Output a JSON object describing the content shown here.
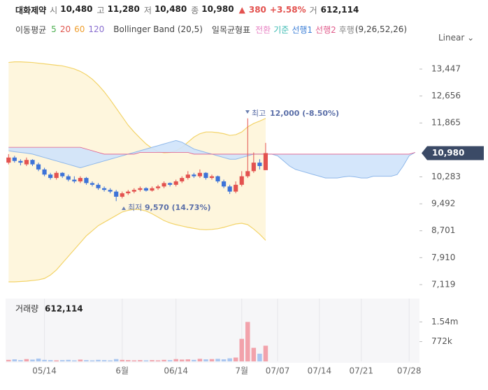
{
  "header": {
    "name": "대화제약",
    "quote": [
      {
        "k": "시",
        "v": "10,480"
      },
      {
        "k": "고",
        "v": "11,280"
      },
      {
        "k": "저",
        "v": "10,480"
      },
      {
        "k": "종",
        "v": "10,980"
      }
    ],
    "change": "380",
    "change_pct": "+3.58%",
    "volume_key": "거",
    "volume": "612,114"
  },
  "indicators": {
    "ma_label": "이동평균",
    "ma": [
      {
        "name": "5",
        "color": "#4caf50"
      },
      {
        "name": "20",
        "color": "#e0574f"
      },
      {
        "name": "60",
        "color": "#f0a030"
      },
      {
        "name": "120",
        "color": "#8a6fd0"
      }
    ],
    "bollinger": "Bollinger Band (20,5)",
    "ichimoku_label": "일목균형표",
    "ichimoku": [
      {
        "name": "전환",
        "color": "#e884c4"
      },
      {
        "name": "기준",
        "color": "#36b8b0"
      },
      {
        "name": "선행1",
        "color": "#3c7fd6"
      },
      {
        "name": "선행2",
        "color": "#e05a8a"
      },
      {
        "name": "후행",
        "color": "#888888"
      }
    ],
    "ichimoku_params": "(9,26,52,26)"
  },
  "scale": "Linear",
  "chart_data": {
    "type": "candlestick",
    "categories": [
      null,
      null,
      null,
      null,
      null,
      null,
      "05/14",
      null,
      null,
      null,
      null,
      null,
      null,
      null,
      null,
      null,
      null,
      null,
      null,
      "6월",
      null,
      null,
      null,
      null,
      null,
      null,
      null,
      null,
      "06/14",
      null,
      null,
      null,
      null,
      null,
      null,
      null,
      null,
      null,
      null,
      "7월",
      null,
      null,
      null,
      null,
      null,
      "07/07",
      null,
      null,
      null,
      null,
      null,
      null,
      "07/14",
      null,
      null,
      null,
      null,
      null,
      null,
      "07/21",
      null,
      null,
      null,
      null,
      null,
      null,
      null,
      "07/28",
      null
    ],
    "open": [
      10700,
      10850,
      10750,
      10650,
      10780,
      10650,
      10500,
      10350,
      10250,
      10400,
      10300,
      10200,
      10150,
      10250,
      10100,
      10050,
      9950,
      9900,
      9850,
      9700,
      9800,
      9850,
      9900,
      9950,
      9880,
      9950,
      10000,
      10100,
      10050,
      10150,
      10250,
      10350,
      10300,
      10400,
      10250,
      10300,
      10150,
      10000,
      9850,
      10050,
      10300,
      10450,
      10700,
      10480,
      null,
      null,
      null,
      null,
      null,
      null,
      null,
      null,
      null,
      null,
      null,
      null,
      null,
      null,
      null,
      null,
      null,
      null,
      null,
      null,
      null,
      null,
      null,
      null,
      null
    ],
    "high": [
      10950,
      10900,
      10800,
      10850,
      10800,
      10700,
      10550,
      10400,
      10450,
      10420,
      10350,
      10300,
      10300,
      10280,
      10150,
      10100,
      10000,
      9950,
      9900,
      9850,
      9900,
      9950,
      10000,
      9980,
      10000,
      10050,
      10150,
      10120,
      10200,
      10300,
      10450,
      10400,
      10500,
      10420,
      10350,
      10320,
      10200,
      10050,
      10150,
      10450,
      12000,
      11000,
      10800,
      11280,
      null,
      null,
      null,
      null,
      null,
      null,
      null,
      null,
      null,
      null,
      null,
      null,
      null,
      null,
      null,
      null,
      null,
      null,
      null,
      null,
      null,
      null,
      null,
      null,
      null
    ],
    "low": [
      10650,
      10700,
      10620,
      10600,
      10600,
      10450,
      10300,
      10200,
      10200,
      10250,
      10150,
      10100,
      10100,
      10050,
      10000,
      9900,
      9850,
      9800,
      9570,
      9650,
      9750,
      9800,
      9850,
      9850,
      9850,
      9900,
      9950,
      10000,
      10000,
      10100,
      10200,
      10250,
      10250,
      10200,
      10200,
      10100,
      9950,
      9780,
      9800,
      10000,
      10250,
      10400,
      10500,
      10480,
      null,
      null,
      null,
      null,
      null,
      null,
      null,
      null,
      null,
      null,
      null,
      null,
      null,
      null,
      null,
      null,
      null,
      null,
      null,
      null,
      null,
      null,
      null,
      null,
      null
    ],
    "close": [
      10850,
      10750,
      10700,
      10780,
      10650,
      10500,
      10350,
      10250,
      10400,
      10300,
      10200,
      10150,
      10250,
      10100,
      10050,
      9950,
      9900,
      9850,
      9700,
      9800,
      9850,
      9900,
      9950,
      9880,
      9950,
      10000,
      10100,
      10050,
      10150,
      10250,
      10350,
      10300,
      10400,
      10250,
      10300,
      10150,
      10000,
      9850,
      10050,
      10300,
      10450,
      10700,
      10600,
      10980,
      null,
      null,
      null,
      null,
      null,
      null,
      null,
      null,
      null,
      null,
      null,
      null,
      null,
      null,
      null,
      null,
      null,
      null,
      null,
      null,
      null,
      null,
      null,
      null,
      null
    ],
    "volume": [
      60000,
      80000,
      50000,
      90000,
      70000,
      110000,
      60000,
      50000,
      40000,
      50000,
      60000,
      40000,
      70000,
      50000,
      40000,
      60000,
      50000,
      40000,
      90000,
      60000,
      50000,
      40000,
      50000,
      40000,
      50000,
      40000,
      60000,
      50000,
      90000,
      70000,
      80000,
      60000,
      100000,
      80000,
      90000,
      100000,
      80000,
      120000,
      150000,
      880000,
      1540000,
      530000,
      300000,
      612114,
      null,
      null,
      null,
      null,
      null,
      null,
      null,
      null,
      null,
      null,
      null,
      null,
      null,
      null,
      null,
      null,
      null,
      null,
      null,
      null,
      null,
      null,
      null,
      null,
      null
    ],
    "bollinger_upper": [
      13640,
      13660,
      13660,
      13650,
      13640,
      13620,
      13600,
      13580,
      13560,
      13540,
      13500,
      13450,
      13380,
      13280,
      13150,
      12980,
      12780,
      12550,
      12300,
      12050,
      11800,
      11600,
      11420,
      11250,
      11120,
      11030,
      10990,
      11000,
      11050,
      11150,
      11300,
      11450,
      11550,
      11600,
      11600,
      11580,
      11550,
      11500,
      11520,
      11600,
      11750,
      11850,
      11920,
      12000,
      null,
      null,
      null,
      null,
      null,
      null,
      null,
      null,
      null,
      null,
      null,
      null,
      null,
      null,
      null,
      null,
      null,
      null,
      null,
      null,
      null,
      null,
      null,
      null,
      null
    ],
    "bollinger_lower": [
      7200,
      7200,
      7210,
      7220,
      7240,
      7260,
      7300,
      7400,
      7550,
      7750,
      7950,
      8150,
      8350,
      8550,
      8700,
      8850,
      8950,
      9050,
      9150,
      9250,
      9300,
      9330,
      9320,
      9280,
      9200,
      9100,
      9000,
      8930,
      8880,
      8840,
      8800,
      8770,
      8740,
      8730,
      8740,
      8760,
      8800,
      8850,
      8900,
      8920,
      8880,
      8750,
      8600,
      8420,
      null,
      null,
      null,
      null,
      null,
      null,
      null,
      null,
      null,
      null,
      null,
      null,
      null,
      null,
      null,
      null,
      null,
      null,
      null,
      null,
      null,
      null,
      null,
      null,
      null
    ],
    "span1": [
      11050,
      11020,
      11000,
      10980,
      10950,
      10900,
      10850,
      10800,
      10750,
      10700,
      10650,
      10600,
      10550,
      10600,
      10650,
      10700,
      10750,
      10800,
      10850,
      10900,
      10950,
      11000,
      11050,
      11100,
      11150,
      11200,
      11250,
      11300,
      11350,
      11300,
      11200,
      11100,
      11050,
      11000,
      10950,
      10900,
      10850,
      10800,
      10800,
      10850,
      10900,
      10950,
      10950,
      10950,
      10950,
      10900,
      10750,
      10600,
      10500,
      10450,
      10400,
      10350,
      10300,
      10250,
      10250,
      10250,
      10280,
      10300,
      10280,
      10250,
      10250,
      10300,
      10300,
      10300,
      10300,
      10350,
      10600,
      10900,
      11000
    ],
    "span2": [
      11150,
      11150,
      11150,
      11150,
      11150,
      11150,
      11150,
      11150,
      11150,
      11150,
      11150,
      11150,
      11150,
      11100,
      11050,
      11000,
      10950,
      10950,
      10950,
      10950,
      10950,
      10950,
      11000,
      11000,
      11000,
      11000,
      11000,
      11000,
      11000,
      11000,
      11000,
      10950,
      10950,
      10950,
      10950,
      10950,
      10950,
      10950,
      10950,
      10950,
      10950,
      10950,
      10950,
      10950,
      10950,
      10950,
      10950,
      10950,
      10950,
      10950,
      10950,
      10950,
      10950,
      10950,
      10950,
      10950,
      10950,
      10950,
      10950,
      10950,
      10950,
      10950,
      10950,
      10950,
      10950,
      10950,
      10950,
      10950,
      11000
    ],
    "up_color": "#e3524f",
    "down_color": "#3d73d8",
    "volume_up_color": "#f2a2ab",
    "volume_down_color": "#a9c6f0",
    "bollinger_color": "#f3d46a",
    "cloud_color": "#cfe3fb",
    "ylim": [
      6770,
      14041
    ],
    "yticks": [
      {
        "value": 7119,
        "label": "7,119"
      },
      {
        "value": 7910,
        "label": "7,910"
      },
      {
        "value": 8701,
        "label": "8,701"
      },
      {
        "value": 9492,
        "label": "9,492"
      },
      {
        "value": 10283,
        "label": "10,283"
      },
      {
        "value": 11865,
        "label": "11,865"
      },
      {
        "value": 12656,
        "label": "12,656"
      },
      {
        "value": 13447,
        "label": "13,447"
      }
    ],
    "volume_label": "거래량",
    "volume_ylim": [
      0,
      2450000
    ],
    "volume_yticks": [
      {
        "value": 772000,
        "label": "772k"
      },
      {
        "value": 1540000,
        "label": "1.54m"
      }
    ],
    "annotations": [
      {
        "label": "최고",
        "text": "12,000 (-8.50%)"
      },
      {
        "label": "최저",
        "text": "9,570 (14.73%)"
      }
    ]
  }
}
